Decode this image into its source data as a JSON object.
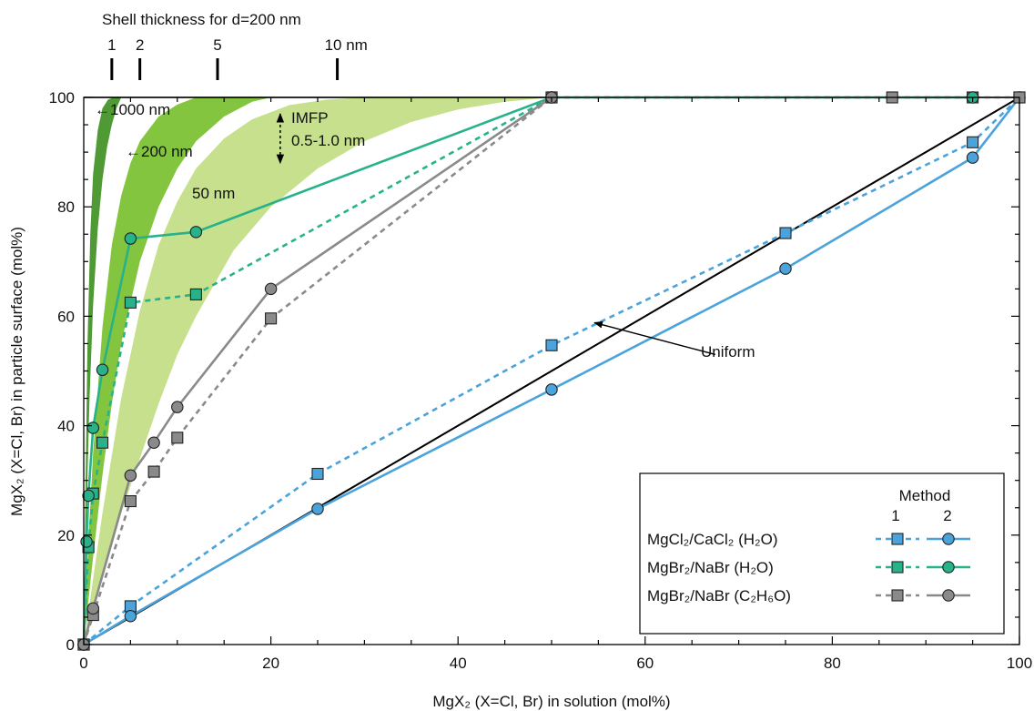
{
  "chart_data": {
    "type": "line",
    "title": "",
    "xlabel": "MgX₂ (X=Cl, Br) in solution (mol%)",
    "ylabel": "MgX₂ (X=Cl, Br) in particle surface (mol%)",
    "xlim": [
      0,
      100
    ],
    "ylim": [
      0,
      100
    ],
    "x_ticks": [
      0,
      20,
      40,
      60,
      80,
      100
    ],
    "y_ticks": [
      0,
      20,
      40,
      60,
      80,
      100
    ],
    "grid": false,
    "legend": {
      "placement": "bottom-right",
      "title": "Method",
      "col1": "1",
      "col2": "2",
      "rows": [
        {
          "label": "MgCl₂/CaCl₂ (H₂O)",
          "color": "#4aa3da"
        },
        {
          "label": "MgBr₂/NaBr (H₂O)",
          "color": "#27b28a"
        },
        {
          "label": "MgBr₂/NaBr (C₂H₆O)",
          "color": "#8a8a8a"
        }
      ]
    },
    "top_axis": {
      "title": "Shell thickness for d=200 nm",
      "ticks": [
        {
          "label": "1",
          "x": 3.0
        },
        {
          "label": "2",
          "x": 6.0
        },
        {
          "label": "5",
          "x": 14.3
        },
        {
          "label": "10 nm",
          "x": 27.1
        }
      ]
    },
    "reference_line": {
      "name": "Uniform",
      "x": [
        0,
        100
      ],
      "y": [
        0,
        100
      ],
      "color": "#000000"
    },
    "bands": [
      {
        "label": "←1000 nm",
        "color": "#4f9a35",
        "upper": {
          "x": [
            0,
            0.2,
            0.4,
            0.7,
            1.0,
            1.5,
            2.0,
            2.6,
            3.2
          ],
          "y": [
            0,
            30,
            55,
            75,
            86,
            94,
            98,
            99.6,
            100
          ]
        },
        "lower": {
          "x": [
            0,
            0.3,
            0.6,
            1.0,
            1.5,
            2.0,
            2.5,
            3.0,
            3.5,
            4.0
          ],
          "y": [
            0,
            24,
            44,
            62,
            76,
            85,
            91,
            95,
            98,
            100
          ]
        }
      },
      {
        "label": "←200 nm",
        "color": "#84c540",
        "upper": {
          "x": [
            0,
            0.5,
            1.0,
            2.0,
            3.0,
            4.0,
            5.0,
            6.0,
            8.0,
            10.0,
            12.0
          ],
          "y": [
            0,
            19,
            35,
            58,
            73,
            82,
            88,
            92,
            96.5,
            98.7,
            100
          ]
        },
        "lower": {
          "x": [
            0,
            1.0,
            2.0,
            3.0,
            4.0,
            6.0,
            8.0,
            10.0,
            12.0,
            15.0,
            18.0,
            20.0
          ],
          "y": [
            0,
            16,
            31,
            44,
            55,
            70,
            80,
            87,
            92,
            96.5,
            99.2,
            100
          ]
        }
      },
      {
        "label": "50 nm",
        "color": "#c6e08d",
        "upper": {
          "x": [
            0,
            2.0,
            4.0,
            6.0,
            8.0,
            10.0,
            12.0,
            15.0,
            18.0,
            22.0,
            26.0,
            30.0
          ],
          "y": [
            0,
            24,
            45,
            61,
            73,
            81,
            87,
            92.5,
            96,
            98.6,
            99.6,
            100
          ]
        },
        "lower": {
          "x": [
            0,
            2.0,
            4.0,
            6.0,
            8.0,
            10.0,
            12.0,
            14.0,
            16.0,
            20.0,
            25.0,
            30.0,
            35.0,
            40.0,
            45.0,
            50.0
          ],
          "y": [
            0,
            12,
            24,
            34,
            44,
            53,
            60,
            66,
            72,
            80,
            87,
            92,
            95.5,
            97.8,
            99.2,
            100
          ]
        }
      }
    ],
    "imfp_annotation": {
      "line1": "IMFP",
      "line2": "0.5-1.0 nm",
      "x": 21,
      "y_top": 97,
      "y_bottom": 88
    },
    "series": [
      {
        "name": "MgCl₂/CaCl₂ (H₂O)",
        "method": "1",
        "marker": "square",
        "dashed": true,
        "color": "#4aa3da",
        "x": [
          0,
          5,
          25,
          50,
          75,
          95,
          100
        ],
        "y": [
          0,
          7,
          31.2,
          54.7,
          75.2,
          91.8,
          100
        ]
      },
      {
        "name": "MgCl₂/CaCl₂ (H₂O)",
        "method": "2",
        "marker": "circle",
        "dashed": false,
        "color": "#4aa3da",
        "x": [
          0,
          5,
          25,
          50,
          75,
          95,
          100
        ],
        "y": [
          0,
          5.2,
          24.8,
          46.6,
          68.7,
          89,
          100
        ]
      },
      {
        "name": "MgBr₂/NaBr (H₂O)",
        "method": "1",
        "marker": "square",
        "dashed": true,
        "color": "#27b28a",
        "x": [
          0,
          0.5,
          1,
          2,
          5,
          12,
          50,
          95
        ],
        "y": [
          0,
          17.8,
          27.6,
          36.9,
          62.5,
          64,
          100,
          100
        ]
      },
      {
        "name": "MgBr₂/NaBr (H₂O)",
        "method": "2",
        "marker": "circle",
        "dashed": false,
        "color": "#27b28a",
        "x": [
          0,
          0.3,
          0.5,
          1,
          2,
          5,
          12,
          50,
          95
        ],
        "y": [
          0,
          18.8,
          27.2,
          39.6,
          50.2,
          74.2,
          75.4,
          100,
          100
        ]
      },
      {
        "name": "MgBr₂/NaBr (C₂H₆O)",
        "method": "1",
        "marker": "square",
        "dashed": true,
        "color": "#8a8a8a",
        "x": [
          0,
          1,
          5,
          7.5,
          10,
          20,
          50,
          86.4,
          100
        ],
        "y": [
          0,
          5.4,
          26.2,
          31.6,
          37.8,
          59.6,
          100,
          100,
          100
        ]
      },
      {
        "name": "MgBr₂/NaBr (C₂H₆O)",
        "method": "2",
        "marker": "circle",
        "dashed": false,
        "color": "#8a8a8a",
        "x": [
          0,
          1,
          5,
          7.5,
          10,
          20,
          50
        ],
        "y": [
          0,
          6.6,
          30.9,
          36.9,
          43.4,
          65,
          100
        ]
      }
    ],
    "annotations": [
      {
        "text": "Uniform",
        "x": 67.5,
        "y": 53,
        "arrow_to": [
          54,
          59.5
        ]
      }
    ]
  }
}
